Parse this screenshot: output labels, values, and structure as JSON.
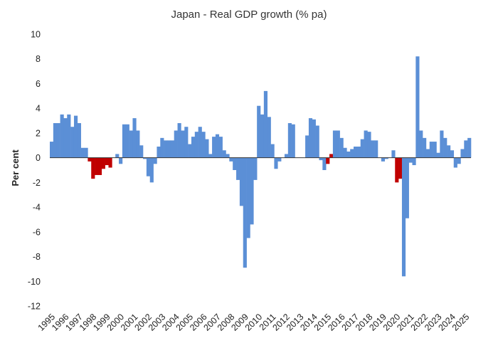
{
  "chart_data": {
    "type": "bar",
    "title": "Japan - Real GDP growth (% pa)",
    "xlabel": "",
    "ylabel": "Per cent",
    "ylim": [
      -12,
      10
    ],
    "yticks": [
      10,
      8,
      6,
      4,
      2,
      0,
      -2,
      -4,
      -6,
      -8,
      -10,
      -12
    ],
    "grid": false,
    "legend": "none",
    "colors": {
      "positive": "#5b8fd6",
      "negative_recession": "#c00000"
    },
    "year_labels": [
      "1995",
      "1996",
      "1997",
      "1998",
      "1999",
      "2000",
      "2001",
      "2002",
      "2003",
      "2004",
      "2005",
      "2006",
      "2007",
      "2008",
      "2009",
      "2010",
      "2011",
      "2012",
      "2013",
      "2014",
      "2015",
      "2016",
      "2017",
      "2018",
      "2019",
      "2020",
      "2021",
      "2022",
      "2023",
      "2024",
      "2025"
    ],
    "categories": [
      "1995Q1",
      "1995Q2",
      "1995Q3",
      "1995Q4",
      "1996Q1",
      "1996Q2",
      "1996Q3",
      "1996Q4",
      "1997Q1",
      "1997Q2",
      "1997Q3",
      "1997Q4",
      "1998Q1",
      "1998Q2",
      "1998Q3",
      "1998Q4",
      "1999Q1",
      "1999Q2",
      "1999Q3",
      "1999Q4",
      "2000Q1",
      "2000Q2",
      "2000Q3",
      "2000Q4",
      "2001Q1",
      "2001Q2",
      "2001Q3",
      "2001Q4",
      "2002Q1",
      "2002Q2",
      "2002Q3",
      "2002Q4",
      "2003Q1",
      "2003Q2",
      "2003Q3",
      "2003Q4",
      "2004Q1",
      "2004Q2",
      "2004Q3",
      "2004Q4",
      "2005Q1",
      "2005Q2",
      "2005Q3",
      "2005Q4",
      "2006Q1",
      "2006Q2",
      "2006Q3",
      "2006Q4",
      "2007Q1",
      "2007Q2",
      "2007Q3",
      "2007Q4",
      "2008Q1",
      "2008Q2",
      "2008Q3",
      "2008Q4",
      "2009Q1",
      "2009Q2",
      "2009Q3",
      "2009Q4",
      "2010Q1",
      "2010Q2",
      "2010Q3",
      "2010Q4",
      "2011Q1",
      "2011Q2",
      "2011Q3",
      "2011Q4",
      "2012Q1",
      "2012Q2",
      "2012Q3",
      "2012Q4",
      "2013Q1",
      "2013Q2",
      "2013Q3",
      "2013Q4",
      "2014Q1",
      "2014Q2",
      "2014Q3",
      "2014Q4",
      "2015Q1",
      "2015Q2",
      "2015Q3",
      "2015Q4",
      "2016Q1",
      "2016Q2",
      "2016Q3",
      "2016Q4",
      "2017Q1",
      "2017Q2",
      "2017Q3",
      "2017Q4",
      "2018Q1",
      "2018Q2",
      "2018Q3",
      "2018Q4",
      "2019Q1",
      "2019Q2",
      "2019Q3",
      "2019Q4",
      "2020Q1",
      "2020Q2",
      "2020Q3",
      "2020Q4",
      "2021Q1",
      "2021Q2",
      "2021Q3",
      "2021Q4",
      "2022Q1",
      "2022Q2",
      "2022Q3",
      "2022Q4",
      "2023Q1",
      "2023Q2",
      "2023Q3",
      "2023Q4",
      "2024Q1",
      "2024Q2",
      "2024Q3",
      "2024Q4",
      "2025Q1",
      "2025Q2"
    ],
    "values": [
      1.3,
      2.8,
      2.8,
      3.5,
      3.2,
      3.5,
      2.5,
      3.4,
      2.8,
      0.8,
      0.8,
      -0.3,
      -1.7,
      -1.4,
      -1.4,
      -0.9,
      -0.6,
      -0.8,
      0.0,
      0.3,
      -0.5,
      2.7,
      2.7,
      2.2,
      3.2,
      2.2,
      1.0,
      -0.1,
      -1.5,
      -2.0,
      -0.5,
      0.9,
      1.6,
      1.4,
      1.4,
      1.4,
      2.2,
      2.8,
      2.2,
      2.5,
      1.1,
      1.7,
      2.1,
      2.5,
      2.1,
      1.5,
      0.3,
      1.7,
      1.9,
      1.7,
      0.6,
      0.3,
      -0.3,
      -1.0,
      -1.8,
      -3.9,
      -8.9,
      -6.5,
      -5.4,
      -1.8,
      4.2,
      3.5,
      5.4,
      3.3,
      1.1,
      -0.9,
      -0.3,
      0.0,
      0.3,
      2.8,
      2.7,
      0.0,
      0.0,
      0.0,
      1.8,
      3.2,
      3.1,
      2.6,
      -0.2,
      -1.0,
      -0.5,
      0.3,
      2.2,
      2.2,
      1.6,
      0.8,
      0.5,
      0.7,
      0.9,
      0.9,
      1.5,
      2.2,
      2.1,
      1.4,
      1.4,
      0.0,
      -0.3,
      -0.1,
      0.0,
      0.6,
      -2.0,
      -1.7,
      -9.6,
      -4.9,
      -0.4,
      -0.6,
      8.2,
      2.2,
      1.6,
      0.7,
      1.3,
      1.3,
      0.4,
      2.2,
      1.6,
      1.0,
      0.6,
      -0.8,
      -0.5,
      0.7,
      1.4,
      1.6
    ],
    "negative_highlight_indices": [
      11,
      12,
      13,
      14,
      15,
      16,
      17,
      80,
      81,
      100,
      101
    ]
  }
}
